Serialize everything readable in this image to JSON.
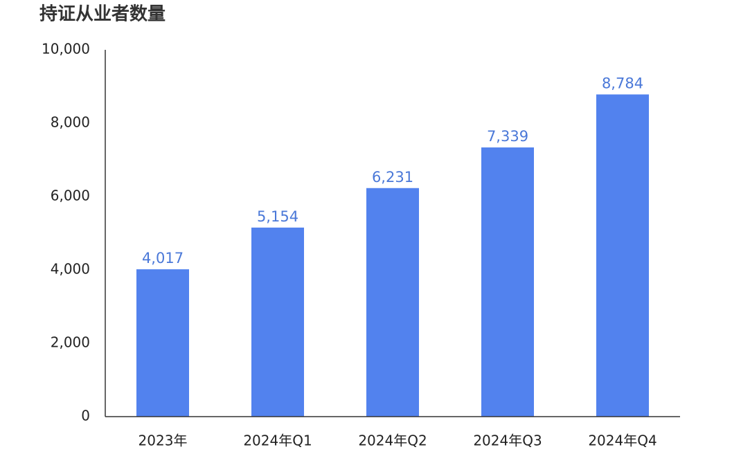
{
  "chart_data": {
    "type": "bar",
    "title": "持证从业者数量",
    "categories": [
      "2023年",
      "2024年Q1",
      "2024年Q2",
      "2024年Q3",
      "2024年Q4"
    ],
    "values": [
      4017,
      5154,
      6231,
      7339,
      8784
    ],
    "value_labels": [
      "4,017",
      "5,154",
      "6,231",
      "7,339",
      "8,784"
    ],
    "color": "#5282ee",
    "ylim": [
      0,
      10000
    ],
    "yticks": [
      0,
      {
        "value": 2000,
        "label": "2,000"
      },
      {
        "value": 4000,
        "label": "4,000"
      },
      {
        "value": 6000,
        "label": "6,000"
      },
      {
        "value": 8000,
        "label": "8,000"
      },
      {
        "value": 10000,
        "label": "10,000"
      }
    ],
    "grid": false
  }
}
